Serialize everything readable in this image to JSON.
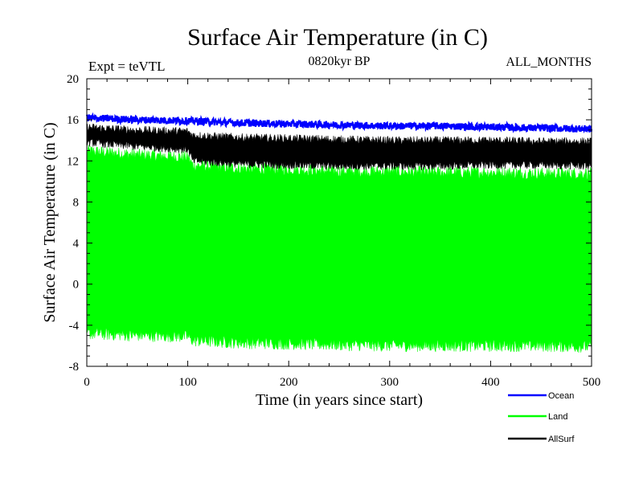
{
  "chart_data": {
    "type": "line",
    "title": "Surface Air Temperature (in C)",
    "subtitle_left": "Expt = teVTL",
    "subtitle_center": "0820kyr BP",
    "subtitle_right": "ALL_MONTHS",
    "xlabel": "Time (in years since start)",
    "ylabel": "Surface Air Temperature (in C)",
    "xlim": [
      0,
      500
    ],
    "ylim": [
      -8,
      20
    ],
    "xticks": [
      0,
      100,
      200,
      300,
      400,
      500
    ],
    "yticks": [
      -8,
      -4,
      0,
      4,
      8,
      12,
      16,
      20
    ],
    "xtick_labels": [
      "0",
      "100",
      "200",
      "300",
      "400",
      "500"
    ],
    "ytick_labels": [
      "-8",
      "-4",
      "0",
      "4",
      "8",
      "12",
      "16",
      "20"
    ],
    "legend_position": "bottom-right, below plot",
    "series": [
      {
        "name": "Ocean",
        "color": "#0000ff",
        "style": "line",
        "x": [
          0,
          50,
          100,
          150,
          200,
          250,
          300,
          350,
          400,
          450,
          500
        ],
        "values": [
          16.2,
          16.0,
          15.9,
          15.7,
          15.6,
          15.5,
          15.4,
          15.4,
          15.3,
          15.2,
          15.1
        ],
        "amplitude": 0.35
      },
      {
        "name": "Land",
        "color": "#00ff00",
        "style": "band",
        "x": [
          0,
          50,
          100,
          105,
          150,
          200,
          250,
          300,
          350,
          400,
          450,
          500
        ],
        "upper": [
          13.0,
          12.6,
          12.4,
          11.6,
          11.3,
          11.2,
          11.0,
          11.0,
          10.9,
          10.9,
          10.8,
          10.8
        ],
        "lower": [
          -4.8,
          -5.0,
          -5.1,
          -5.5,
          -5.7,
          -5.8,
          -5.9,
          -6.0,
          -6.0,
          -6.0,
          -6.0,
          -6.1
        ]
      },
      {
        "name": "AllSurf",
        "color": "#000000",
        "style": "band",
        "x": [
          0,
          50,
          100,
          105,
          150,
          200,
          250,
          300,
          350,
          400,
          450,
          500
        ],
        "upper": [
          15.3,
          15.0,
          14.9,
          14.5,
          14.3,
          14.2,
          14.1,
          14.0,
          14.0,
          14.0,
          13.9,
          13.9
        ],
        "lower": [
          13.8,
          13.4,
          13.1,
          12.0,
          11.7,
          11.6,
          11.5,
          11.5,
          11.5,
          11.6,
          11.6,
          11.5
        ]
      }
    ]
  }
}
